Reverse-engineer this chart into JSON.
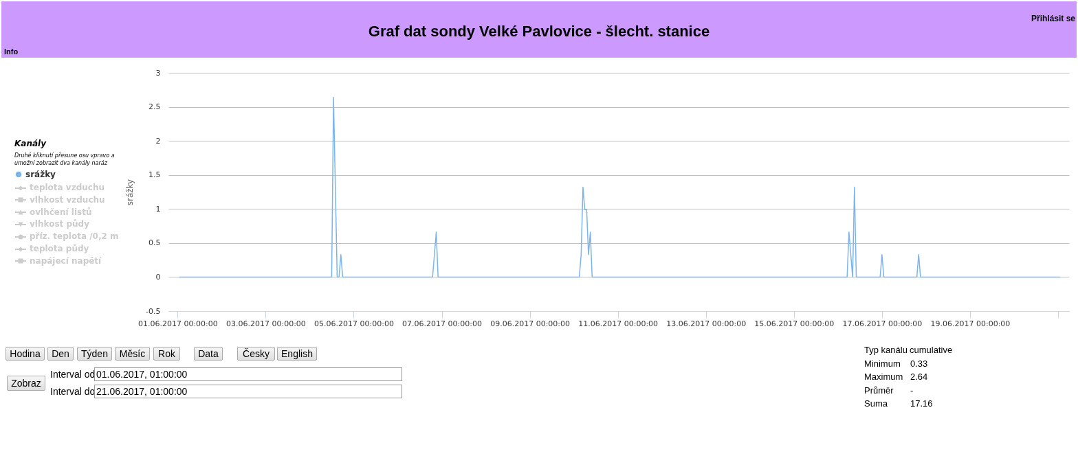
{
  "chart_data": {
    "type": "line",
    "title": "Graf dat sondy Velké Pavlovice - šlecht. stanice",
    "ylabel": "srážky",
    "legend_title": "Kanály",
    "legend": "left",
    "grid": "y",
    "x": [
      "2017-06-01T01:00",
      "2017-06-04T12:00",
      "2017-06-04T13:00",
      "2017-06-04T14:00",
      "2017-06-04T15:00",
      "2017-06-04T16:00",
      "2017-06-04T17:00",
      "2017-06-04T18:00",
      "2017-06-06T19:00",
      "2017-06-06T20:00",
      "2017-06-06T21:00",
      "2017-06-06T22:00",
      "2017-06-10T03:00",
      "2017-06-10T04:00",
      "2017-06-10T05:00",
      "2017-06-10T06:00",
      "2017-06-10T07:00",
      "2017-06-10T08:00",
      "2017-06-10T09:00",
      "2017-06-10T10:00",
      "2017-06-16T05:00",
      "2017-06-16T06:00",
      "2017-06-16T07:00",
      "2017-06-16T08:00",
      "2017-06-16T09:00",
      "2017-06-16T10:00",
      "2017-06-16T23:00",
      "2017-06-17T00:00",
      "2017-06-17T01:00",
      "2017-06-17T19:00",
      "2017-06-17T20:00",
      "2017-06-17T21:00",
      "2017-06-21T01:00"
    ],
    "series": [
      {
        "name": "srážky",
        "color": "#7cb5ec",
        "values": [
          0,
          0,
          2.64,
          1.32,
          0,
          0,
          0.33,
          0,
          0,
          0.33,
          0.66,
          0,
          0,
          0.33,
          1.32,
          0.99,
          0.99,
          0.33,
          0.66,
          0,
          0,
          0.66,
          0.33,
          0,
          1.32,
          0,
          0,
          0.33,
          0,
          0,
          0.33,
          0,
          0
        ]
      }
    ],
    "ylim": [
      -0.5,
      3
    ],
    "yticks": [
      -0.5,
      0,
      0.5,
      1,
      1.5,
      2,
      2.5,
      3
    ],
    "xlim": [
      "2017-05-31T19:00",
      "2017-06-21T06:00"
    ],
    "xticks": [
      {
        "value": "2017-06-01",
        "label": "01.06.2017 00:00:00"
      },
      {
        "value": "2017-06-03",
        "label": "03.06.2017 00:00:00"
      },
      {
        "value": "2017-06-05",
        "label": "05.06.2017 00:00:00"
      },
      {
        "value": "2017-06-07",
        "label": "07.06.2017 00:00:00"
      },
      {
        "value": "2017-06-09",
        "label": "09.06.2017 00:00:00"
      },
      {
        "value": "2017-06-11",
        "label": "11.06.2017 00:00:00"
      },
      {
        "value": "2017-06-13",
        "label": "13.06.2017 00:00:00"
      },
      {
        "value": "2017-06-15",
        "label": "15.06.2017 00:00:00"
      },
      {
        "value": "2017-06-17",
        "label": "17.06.2017 00:00:00"
      },
      {
        "value": "2017-06-19",
        "label": "19.06.2017 00:00:00"
      },
      {
        "value": "2017-06-21",
        "label": null
      }
    ],
    "annotations": [
      "Přihlásit se",
      "Info",
      "Druhé kliknutí přesune osu vpravo a umožní zobrazit dva kanály naráz",
      "teplota vzduchu",
      "vlhkost vzduchu",
      "ovlhčení listů",
      "vlhkost půdy",
      "příz. teplota /0,2 m",
      "teplota půdy",
      "napájecí napětí",
      "Hodina",
      "Den",
      "Týden",
      "Měsíc",
      "Rok",
      "Data",
      "Česky",
      "English",
      "Zobraz",
      "Interval od",
      "01.06.2017, 01:00:00",
      "Interval do",
      "21.06.2017, 01:00:00",
      "Typ kanálu",
      "cumulative",
      "Minimum",
      "0.33",
      "Maximum",
      "2.64",
      "Průměr",
      "-",
      "Suma",
      "17.16"
    ]
  }
}
